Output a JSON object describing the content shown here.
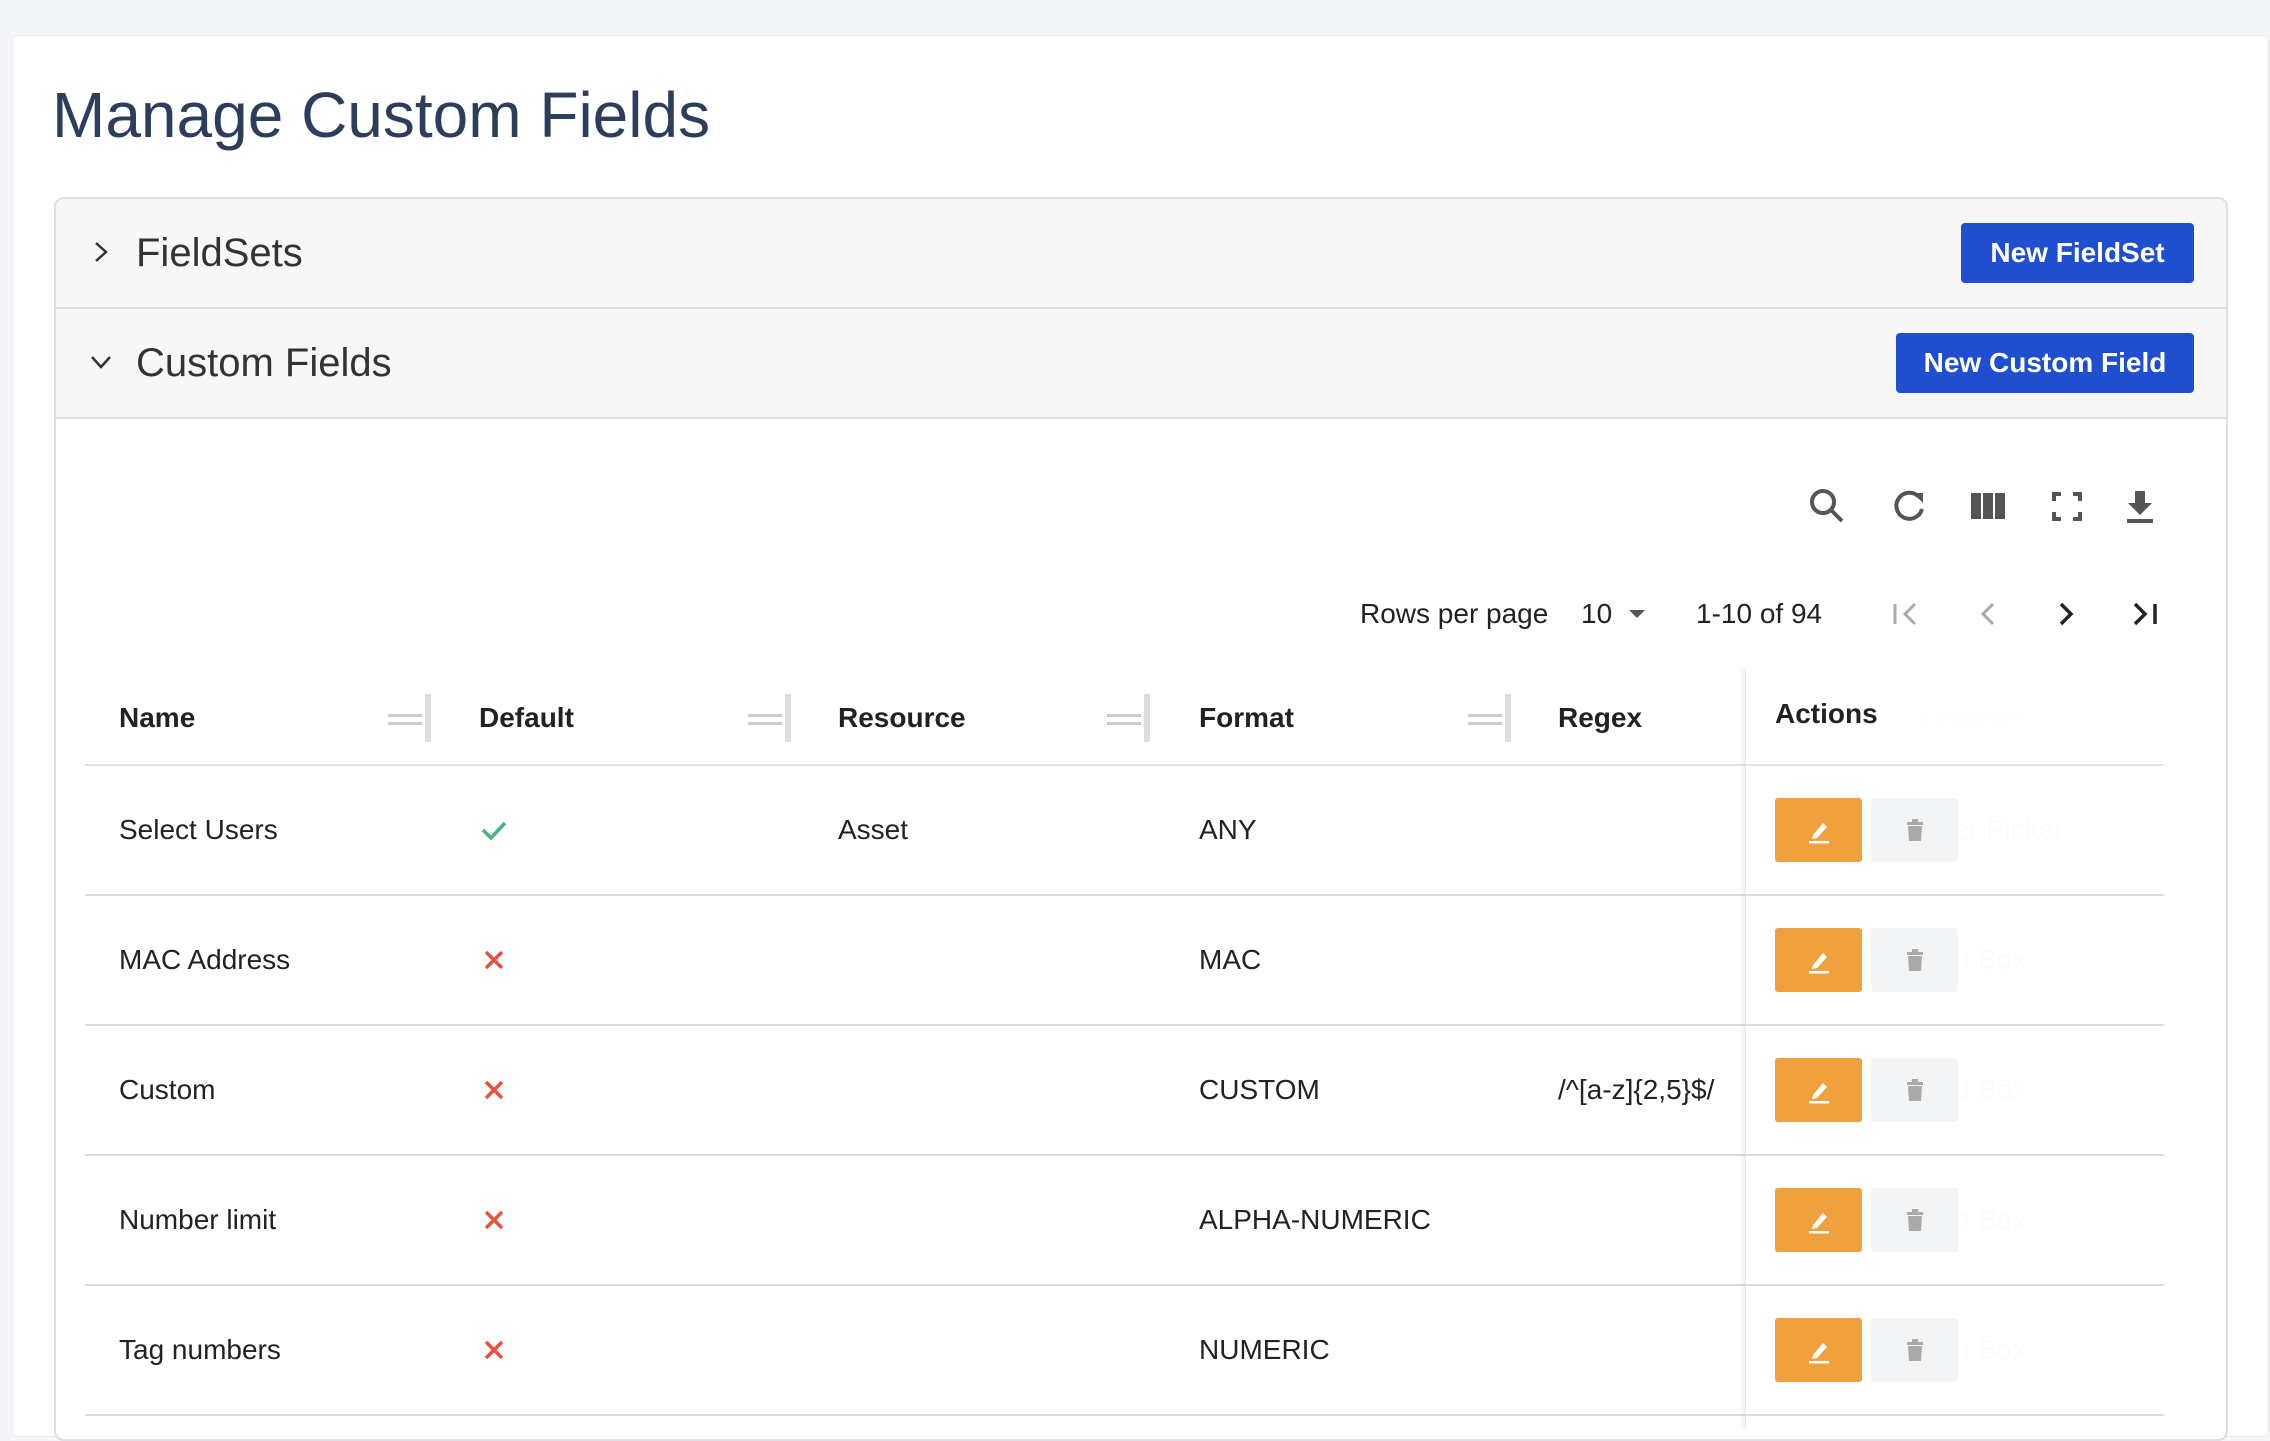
{
  "page": {
    "title": "Manage Custom Fields",
    "sections": [
      {
        "title": "FieldSets",
        "button": "New FieldSet",
        "expanded": false
      },
      {
        "title": "Custom Fields",
        "button": "New Custom Field",
        "expanded": true
      }
    ],
    "pagination": {
      "rows_per_page_label": "Rows per page",
      "rows_per_page": "10",
      "range": "1-10 of 94"
    },
    "table": {
      "columns": [
        "Name",
        "Default",
        "Resource",
        "Format",
        "Regex",
        "Element"
      ],
      "actions_header": "Actions",
      "rows": [
        {
          "name": "Select Users",
          "default": true,
          "resource": "Asset",
          "format": "ANY",
          "regex": null,
          "element": "User Picker"
        },
        {
          "name": "MAC Address",
          "default": false,
          "resource": null,
          "format": "MAC",
          "regex": null,
          "element": "Text Box"
        },
        {
          "name": "Custom",
          "default": false,
          "resource": null,
          "format": "CUSTOM",
          "regex": "/^[a-z]{2,5}$/",
          "element": "Text Box"
        },
        {
          "name": "Number limit",
          "default": false,
          "resource": null,
          "format": "ALPHA-NUMERIC",
          "regex": null,
          "element": "Text Box"
        },
        {
          "name": "Tag numbers",
          "default": false,
          "resource": null,
          "format": "NUMERIC",
          "regex": null,
          "element": "Text Box"
        }
      ]
    }
  }
}
